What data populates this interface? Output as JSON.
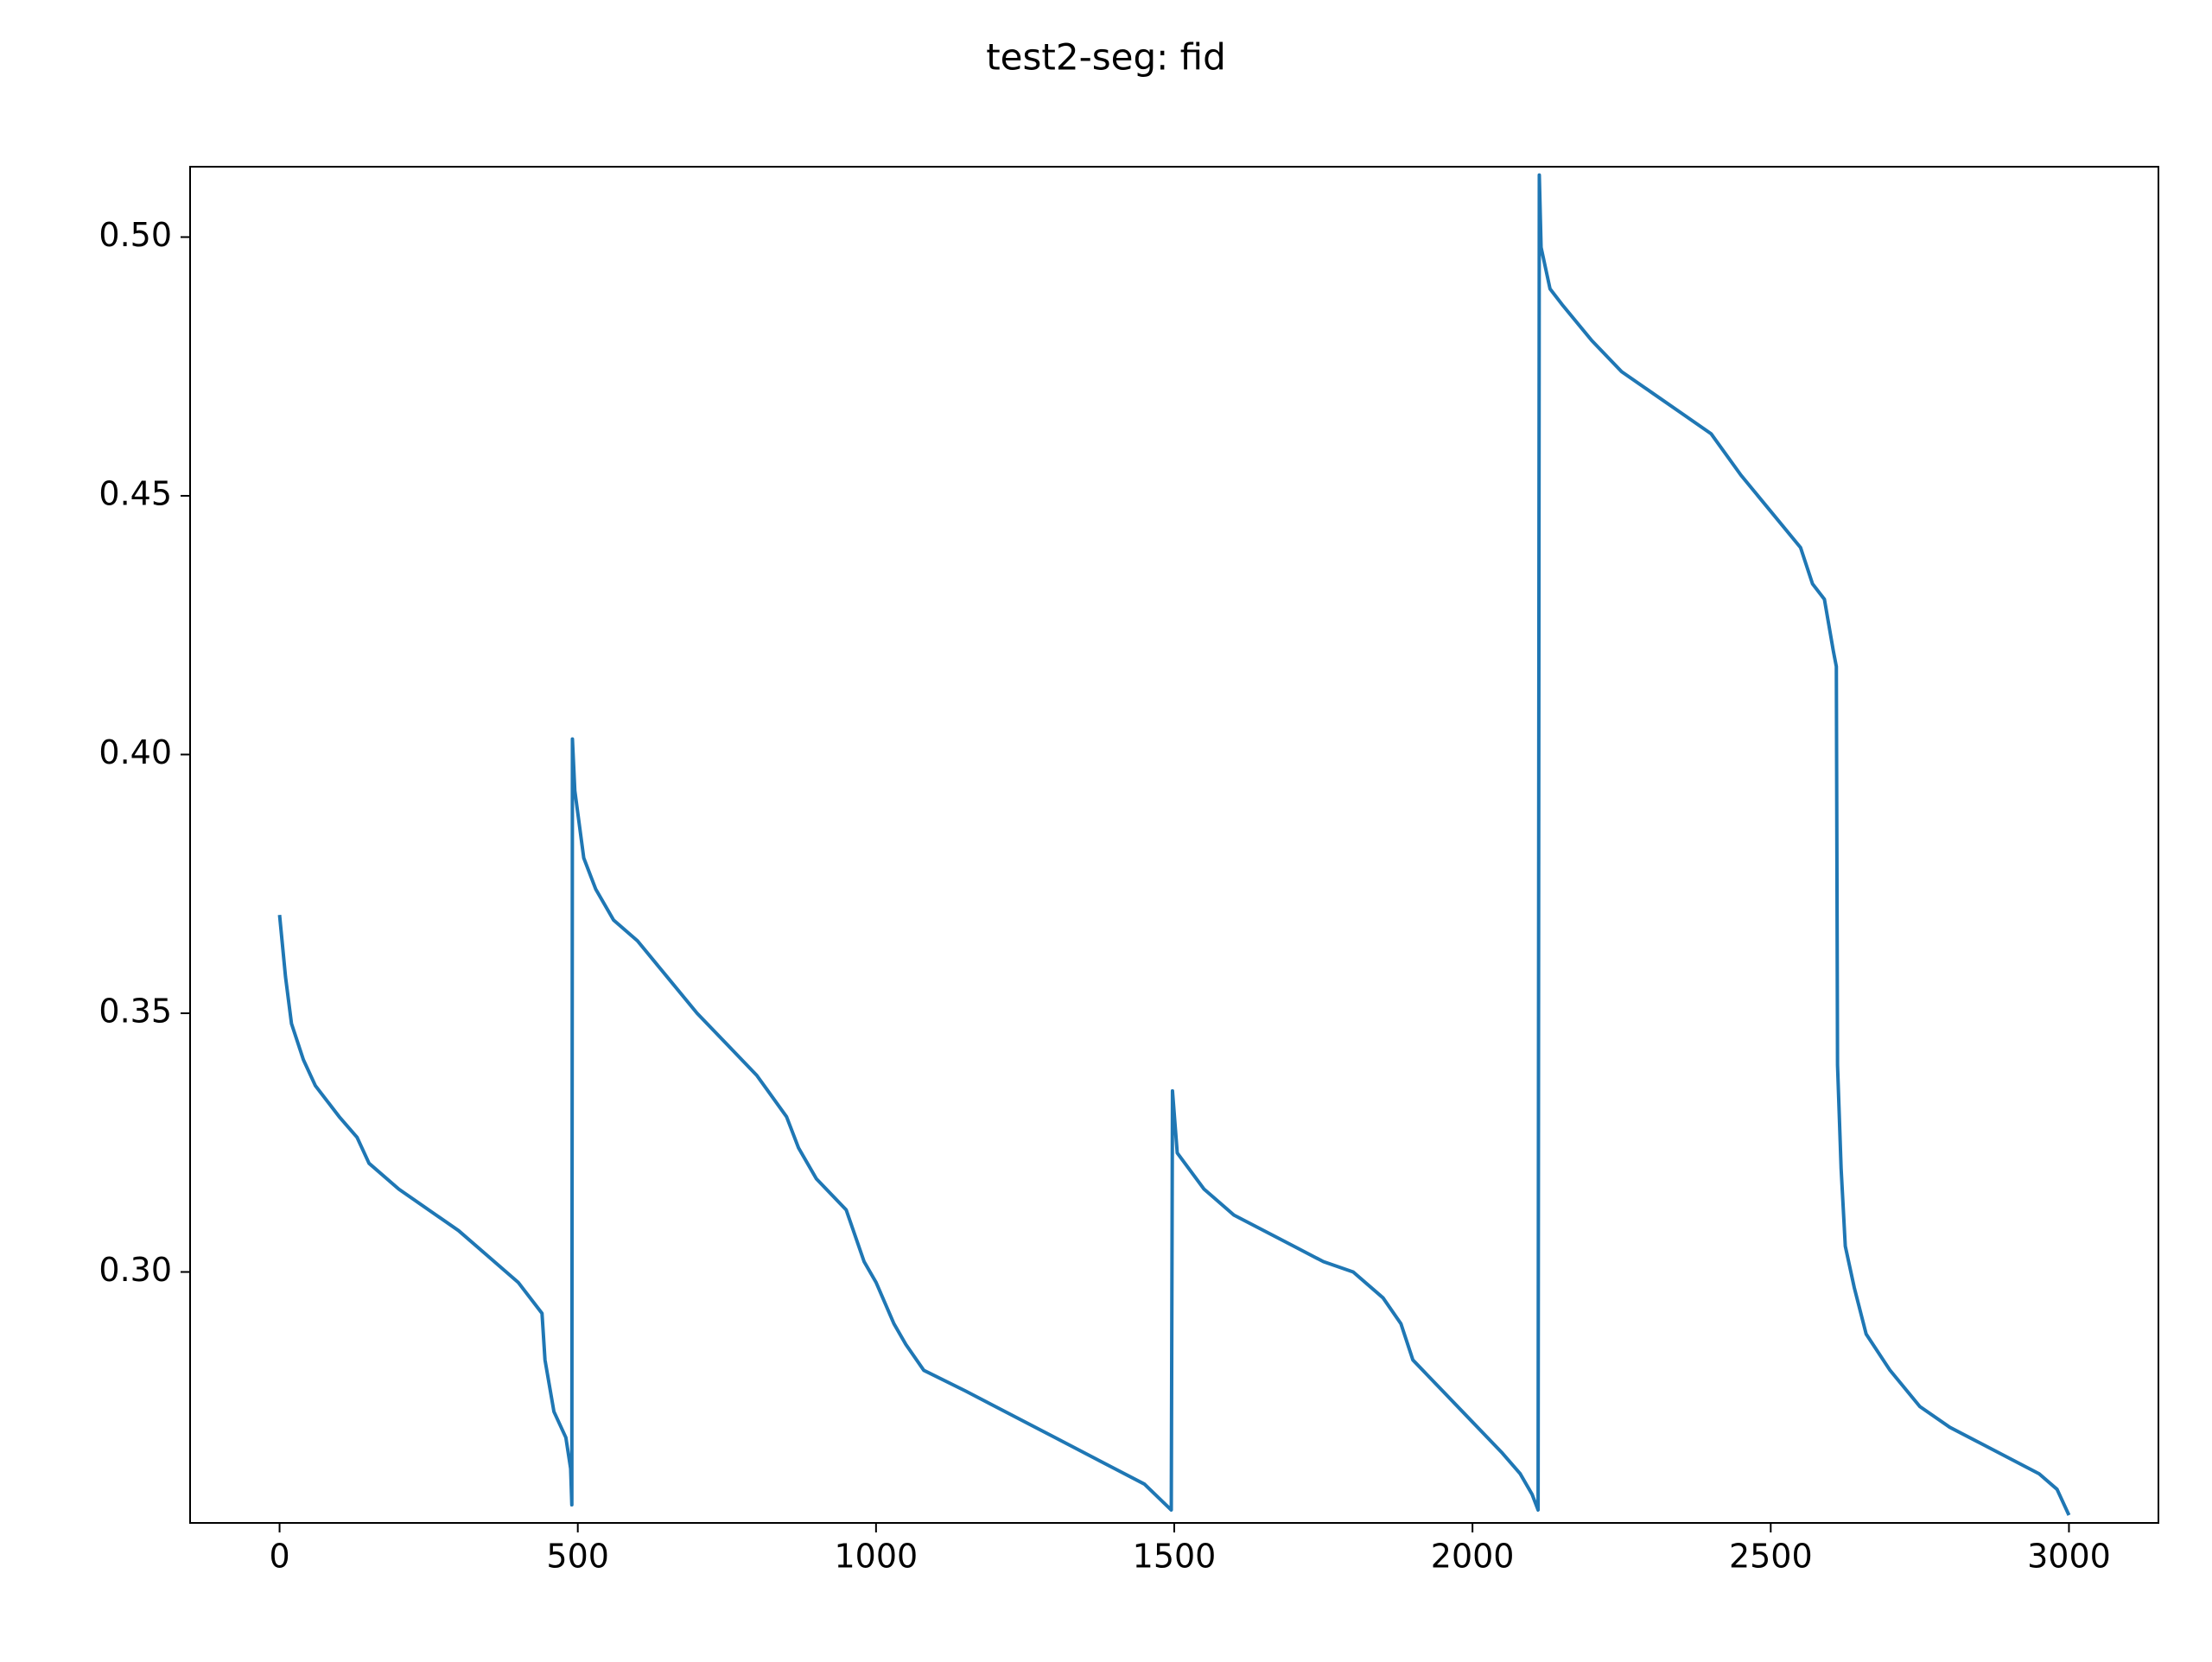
{
  "chart_data": {
    "type": "line",
    "title": "test2-seg: fid",
    "x": [
      0,
      10,
      20,
      40,
      60,
      100,
      130,
      150,
      200,
      250,
      300,
      350,
      400,
      440,
      445,
      460,
      480,
      488,
      490,
      491,
      495,
      510,
      530,
      560,
      600,
      650,
      700,
      750,
      800,
      850,
      870,
      900,
      950,
      980,
      1000,
      1030,
      1050,
      1080,
      1150,
      1200,
      1300,
      1400,
      1450,
      1495,
      1497,
      1505,
      1550,
      1600,
      1700,
      1750,
      1800,
      1850,
      1880,
      1900,
      1950,
      2000,
      2050,
      2080,
      2100,
      2110,
      2112,
      2115,
      2130,
      2150,
      2200,
      2250,
      2300,
      2350,
      2400,
      2450,
      2500,
      2550,
      2570,
      2590,
      2605,
      2610,
      2612,
      2618,
      2625,
      2640,
      2660,
      2700,
      2750,
      2800,
      2850,
      2900,
      2950,
      2980,
      3000
    ],
    "series": [
      {
        "name": "fid",
        "color": "#1f77b4",
        "values": [
          0.369,
          0.357,
          0.348,
          0.341,
          0.336,
          0.33,
          0.326,
          0.321,
          0.316,
          0.312,
          0.308,
          0.303,
          0.298,
          0.292,
          0.283,
          0.273,
          0.268,
          0.262,
          0.255,
          0.403,
          0.393,
          0.38,
          0.374,
          0.368,
          0.364,
          0.357,
          0.35,
          0.344,
          0.338,
          0.33,
          0.324,
          0.318,
          0.312,
          0.302,
          0.298,
          0.29,
          0.286,
          0.281,
          0.277,
          0.274,
          0.268,
          0.262,
          0.259,
          0.254,
          0.335,
          0.323,
          0.316,
          0.311,
          0.305,
          0.302,
          0.3,
          0.295,
          0.29,
          0.283,
          0.277,
          0.271,
          0.265,
          0.261,
          0.257,
          0.254,
          0.512,
          0.498,
          0.49,
          0.487,
          0.48,
          0.474,
          0.47,
          0.466,
          0.462,
          0.454,
          0.447,
          0.44,
          0.433,
          0.43,
          0.42,
          0.417,
          0.34,
          0.32,
          0.305,
          0.297,
          0.288,
          0.281,
          0.274,
          0.27,
          0.267,
          0.264,
          0.261,
          0.258,
          0.253
        ]
      }
    ],
    "xlim": [
      -150,
      3150
    ],
    "ylim": [
      0.2515,
      0.5136
    ],
    "xticks": [
      0,
      500,
      1000,
      1500,
      2000,
      2500,
      3000
    ],
    "yticks": [
      {
        "value": 0.3,
        "label": "0.30"
      },
      {
        "value": 0.35,
        "label": "0.35"
      },
      {
        "value": 0.4,
        "label": "0.40"
      },
      {
        "value": 0.45,
        "label": "0.45"
      },
      {
        "value": 0.5,
        "label": "0.50"
      }
    ],
    "grid": false
  }
}
